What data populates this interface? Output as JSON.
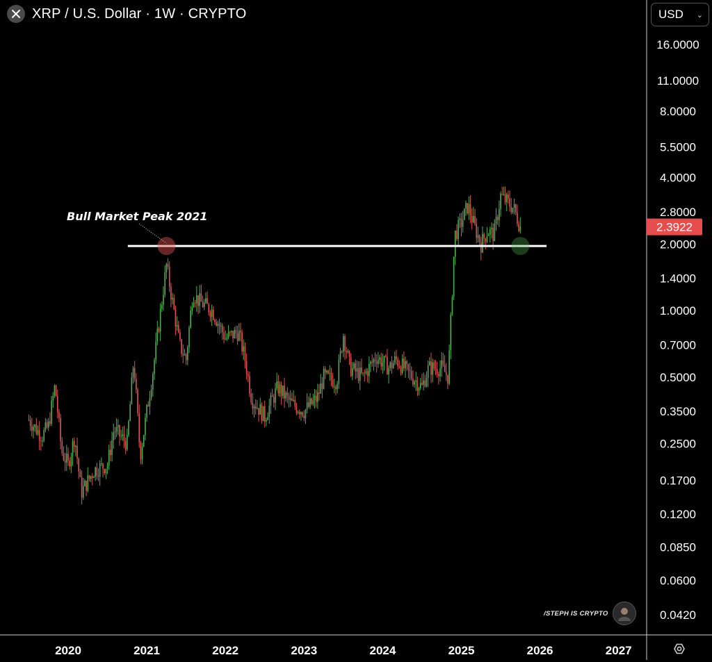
{
  "header": {
    "title": "XRP / U.S. Dollar · 1W · CRYPTO"
  },
  "currency_select": {
    "value": "USD"
  },
  "icons": {
    "close": "close-icon",
    "settings": "settings-icon",
    "chevron": "chevron-down-icon"
  },
  "watermark": {
    "text": "/STEPH IS CRYPTO"
  },
  "colors": {
    "up": "#4caf50",
    "down": "#e05252",
    "price_badge": "#e84d4d",
    "line": "#ffffff",
    "bg": "#000000"
  },
  "chart_data": {
    "type": "candlestick",
    "timeframe": "1W",
    "y_scale": "log",
    "ylim": [
      0.035,
      20
    ],
    "x_range": [
      "2019-07",
      "2027-06"
    ],
    "x_ticks": [
      "2020",
      "2021",
      "2022",
      "2023",
      "2024",
      "2025",
      "2026",
      "2027"
    ],
    "y_ticks": [
      "16.0000",
      "11.0000",
      "8.0000",
      "5.5000",
      "4.0000",
      "2.8000",
      "2.0000",
      "1.4000",
      "1.0000",
      "0.7000",
      "0.5000",
      "0.3500",
      "0.2500",
      "0.1700",
      "0.1200",
      "0.0850",
      "0.0600",
      "0.0420"
    ],
    "current_price": {
      "label": "2.3922",
      "value": 2.3922
    },
    "horizontal_line": {
      "value": 1.96
    },
    "annotation": {
      "text": "Bull Market Peak 2021",
      "target": {
        "date": "2021-04",
        "value": 1.96
      }
    },
    "markers": [
      {
        "date": "2021-04",
        "value": 1.96,
        "color": "#e05252"
      },
      {
        "date": "2025-10",
        "value": 1.96,
        "color": "#4caf50"
      }
    ],
    "price_path": [
      [
        "2019-07",
        0.32
      ],
      [
        "2019-09",
        0.27
      ],
      [
        "2019-10",
        0.3
      ],
      [
        "2019-11",
        0.46
      ],
      [
        "2019-12",
        0.23
      ],
      [
        "2020-01",
        0.2
      ],
      [
        "2020-02",
        0.27
      ],
      [
        "2020-03",
        0.15
      ],
      [
        "2020-05",
        0.19
      ],
      [
        "2020-07",
        0.2
      ],
      [
        "2020-08",
        0.29
      ],
      [
        "2020-10",
        0.25
      ],
      [
        "2020-11",
        0.6
      ],
      [
        "2020-12",
        0.22
      ],
      [
        "2021-02",
        0.55
      ],
      [
        "2021-04",
        1.6
      ],
      [
        "2021-06",
        0.7
      ],
      [
        "2021-07",
        0.6
      ],
      [
        "2021-08",
        1.2
      ],
      [
        "2021-09",
        1.1
      ],
      [
        "2021-11",
        1.0
      ],
      [
        "2022-01",
        0.75
      ],
      [
        "2022-03",
        0.8
      ],
      [
        "2022-04",
        0.6
      ],
      [
        "2022-05",
        0.4
      ],
      [
        "2022-07",
        0.33
      ],
      [
        "2022-09",
        0.45
      ],
      [
        "2022-11",
        0.38
      ],
      [
        "2023-01",
        0.35
      ],
      [
        "2023-03",
        0.4
      ],
      [
        "2023-04",
        0.5
      ],
      [
        "2023-06",
        0.48
      ],
      [
        "2023-07",
        0.78
      ],
      [
        "2023-08",
        0.55
      ],
      [
        "2023-10",
        0.5
      ],
      [
        "2023-12",
        0.62
      ],
      [
        "2024-02",
        0.55
      ],
      [
        "2024-03",
        0.6
      ],
      [
        "2024-05",
        0.52
      ],
      [
        "2024-07",
        0.45
      ],
      [
        "2024-08",
        0.55
      ],
      [
        "2024-10",
        0.55
      ],
      [
        "2024-11",
        0.5
      ],
      [
        "2024-12",
        2.2
      ],
      [
        "2025-01",
        2.5
      ],
      [
        "2025-02",
        3.0
      ],
      [
        "2025-03",
        2.4
      ],
      [
        "2025-04",
        2.0
      ],
      [
        "2025-05",
        2.3
      ],
      [
        "2025-06",
        2.2
      ],
      [
        "2025-07",
        3.3
      ],
      [
        "2025-08",
        3.1
      ],
      [
        "2025-09",
        2.9
      ],
      [
        "2025-10",
        2.39
      ]
    ]
  }
}
